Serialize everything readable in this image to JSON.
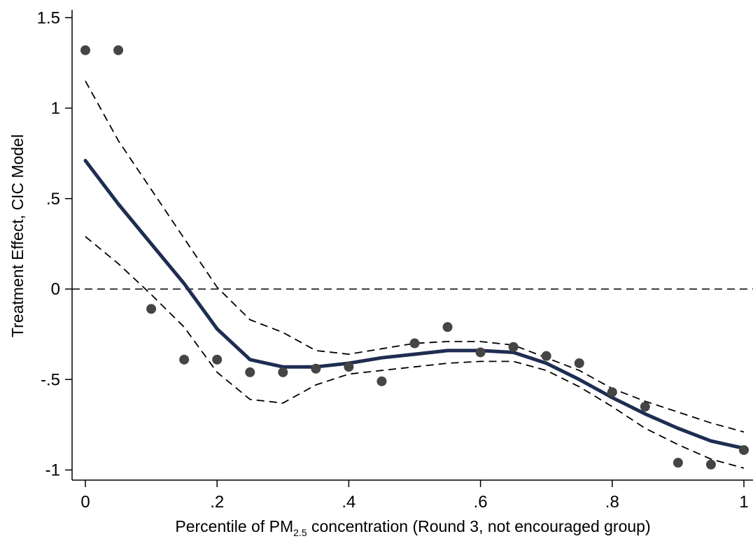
{
  "chart_data": {
    "type": "line",
    "title": "",
    "ylabel": "Treatment Effect, CIC Model",
    "xlabel_parts": {
      "before": "Percentile of PM",
      "subscript": "2.5",
      "after": " concentration (Round 3, not encouraged group)"
    },
    "xlim": [
      0,
      1
    ],
    "ylim": [
      -1.05,
      1.55
    ],
    "x_ticks": [
      {
        "value": 0,
        "label": "0"
      },
      {
        "value": 0.2,
        "label": ".2"
      },
      {
        "value": 0.4,
        "label": ".4"
      },
      {
        "value": 0.6,
        "label": ".6"
      },
      {
        "value": 0.8,
        "label": ".8"
      },
      {
        "value": 1,
        "label": "1"
      }
    ],
    "y_ticks": [
      {
        "value": 1.5,
        "label": "1.5"
      },
      {
        "value": 1,
        "label": "1"
      },
      {
        "value": 0.5,
        "label": ".5"
      },
      {
        "value": 0,
        "label": "0"
      },
      {
        "value": -0.5,
        "label": "-.5"
      },
      {
        "value": -1,
        "label": "-1"
      }
    ],
    "reference_line_y": 0,
    "grid": false,
    "legend": false,
    "colors": {
      "fit_line": "#1f2d52",
      "ci_lines": "#000000",
      "points": "#454545",
      "reference_line": "#000000"
    },
    "series": [
      {
        "role": "points",
        "x": [
          0,
          0.05,
          0.1,
          0.15,
          0.2,
          0.25,
          0.3,
          0.35,
          0.4,
          0.45,
          0.5,
          0.55,
          0.6,
          0.65,
          0.7,
          0.75,
          0.8,
          0.85,
          0.9,
          0.95,
          1
        ],
        "values": [
          1.32,
          1.32,
          -0.11,
          -0.39,
          -0.39,
          -0.46,
          -0.46,
          -0.44,
          -0.43,
          -0.51,
          -0.3,
          -0.21,
          -0.35,
          -0.32,
          -0.37,
          -0.41,
          -0.57,
          -0.65,
          -0.96,
          -0.97,
          -0.89
        ]
      },
      {
        "role": "fit",
        "x": [
          0,
          0.05,
          0.1,
          0.15,
          0.2,
          0.25,
          0.3,
          0.35,
          0.4,
          0.45,
          0.5,
          0.55,
          0.6,
          0.65,
          0.7,
          0.75,
          0.8,
          0.85,
          0.9,
          0.95,
          1
        ],
        "values": [
          0.71,
          0.47,
          0.25,
          0.03,
          -0.22,
          -0.39,
          -0.43,
          -0.43,
          -0.41,
          -0.38,
          -0.36,
          -0.34,
          -0.34,
          -0.35,
          -0.41,
          -0.5,
          -0.6,
          -0.69,
          -0.77,
          -0.84,
          -0.88
        ]
      },
      {
        "role": "ci-upper",
        "x": [
          0,
          0.05,
          0.1,
          0.15,
          0.2,
          0.25,
          0.3,
          0.35,
          0.4,
          0.45,
          0.5,
          0.55,
          0.6,
          0.65,
          0.7,
          0.75,
          0.8,
          0.85,
          0.9,
          0.95,
          1
        ],
        "values": [
          1.15,
          0.82,
          0.55,
          0.28,
          0.01,
          -0.17,
          -0.24,
          -0.34,
          -0.36,
          -0.33,
          -0.3,
          -0.29,
          -0.29,
          -0.31,
          -0.38,
          -0.45,
          -0.55,
          -0.62,
          -0.68,
          -0.74,
          -0.79
        ]
      },
      {
        "role": "ci-lower",
        "x": [
          0,
          0.05,
          0.1,
          0.15,
          0.2,
          0.25,
          0.3,
          0.35,
          0.4,
          0.45,
          0.5,
          0.55,
          0.6,
          0.65,
          0.7,
          0.75,
          0.8,
          0.85,
          0.9,
          0.95,
          1
        ],
        "values": [
          0.29,
          0.14,
          -0.03,
          -0.21,
          -0.46,
          -0.61,
          -0.63,
          -0.53,
          -0.47,
          -0.45,
          -0.43,
          -0.41,
          -0.4,
          -0.4,
          -0.45,
          -0.54,
          -0.65,
          -0.77,
          -0.86,
          -0.94,
          -0.99
        ]
      }
    ]
  }
}
